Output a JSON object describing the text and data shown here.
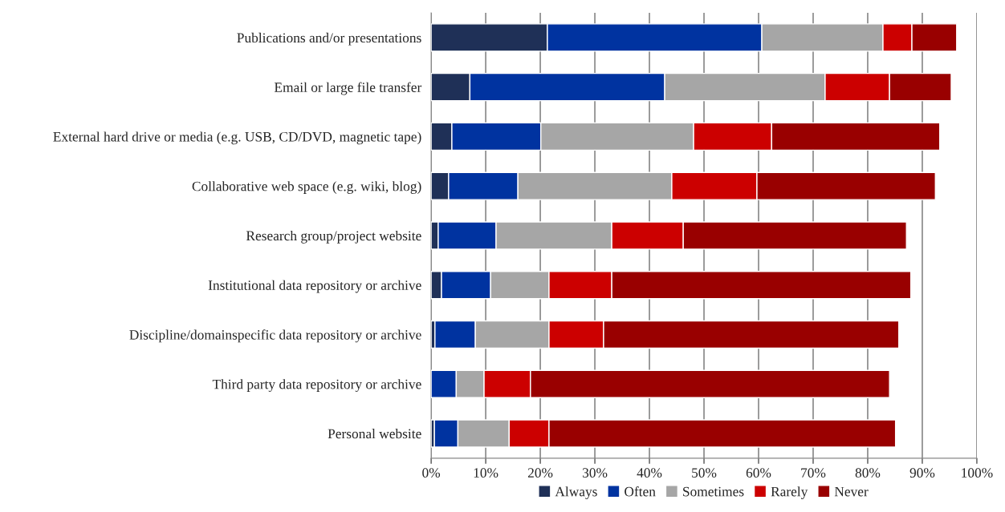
{
  "chart_data": {
    "type": "bar",
    "orientation": "horizontal",
    "stacked": true,
    "categories": [
      "Publications and/or presentations",
      "Email or large file transfer",
      "External hard drive or media (e.g. USB, CD/DVD, magnetic tape)",
      "Collaborative web space (e.g. wiki, blog)",
      "Research group/project website",
      "Institutional data repository or archive",
      "Discipline/domainspecific data repository or archive",
      "Third party data repository or archive",
      "Personal website"
    ],
    "series": [
      {
        "name": "Always",
        "color": "#1f3057",
        "values": [
          21.3,
          7.1,
          3.8,
          3.2,
          1.3,
          1.9,
          0.7,
          null,
          0.6
        ]
      },
      {
        "name": "Often",
        "color": "#0033a0",
        "values": [
          39.3,
          35.7,
          16.3,
          12.7,
          10.6,
          9.0,
          7.4,
          4.6,
          4.3
        ]
      },
      {
        "name": "Sometimes",
        "color": "#a6a6a6",
        "values": [
          22.2,
          29.4,
          28.0,
          28.2,
          21.2,
          10.7,
          13.5,
          5.1,
          9.4
        ]
      },
      {
        "name": "Rarely",
        "color": "#cc0000",
        "values": [
          5.3,
          11.8,
          14.3,
          15.6,
          13.1,
          11.5,
          10.0,
          8.5,
          7.3
        ]
      },
      {
        "name": "Never",
        "color": "#990000",
        "values": [
          8.2,
          11.3,
          30.8,
          32.7,
          40.9,
          54.8,
          54.1,
          65.8,
          63.5
        ]
      }
    ],
    "xlim": [
      0,
      100
    ],
    "xticks": [
      {
        "value": 0,
        "label": "0%"
      },
      {
        "value": 10,
        "label": "10%"
      },
      {
        "value": 20,
        "label": "20%"
      },
      {
        "value": 30,
        "label": "30%"
      },
      {
        "value": 40,
        "label": "40%"
      },
      {
        "value": 50,
        "label": "50%"
      },
      {
        "value": 60,
        "label": "60%"
      },
      {
        "value": 70,
        "label": "70%"
      },
      {
        "value": 80,
        "label": "80%"
      },
      {
        "value": 90,
        "label": "90%"
      },
      {
        "value": 100,
        "label": "100%"
      }
    ],
    "grid": "x",
    "legend": "bottom"
  }
}
